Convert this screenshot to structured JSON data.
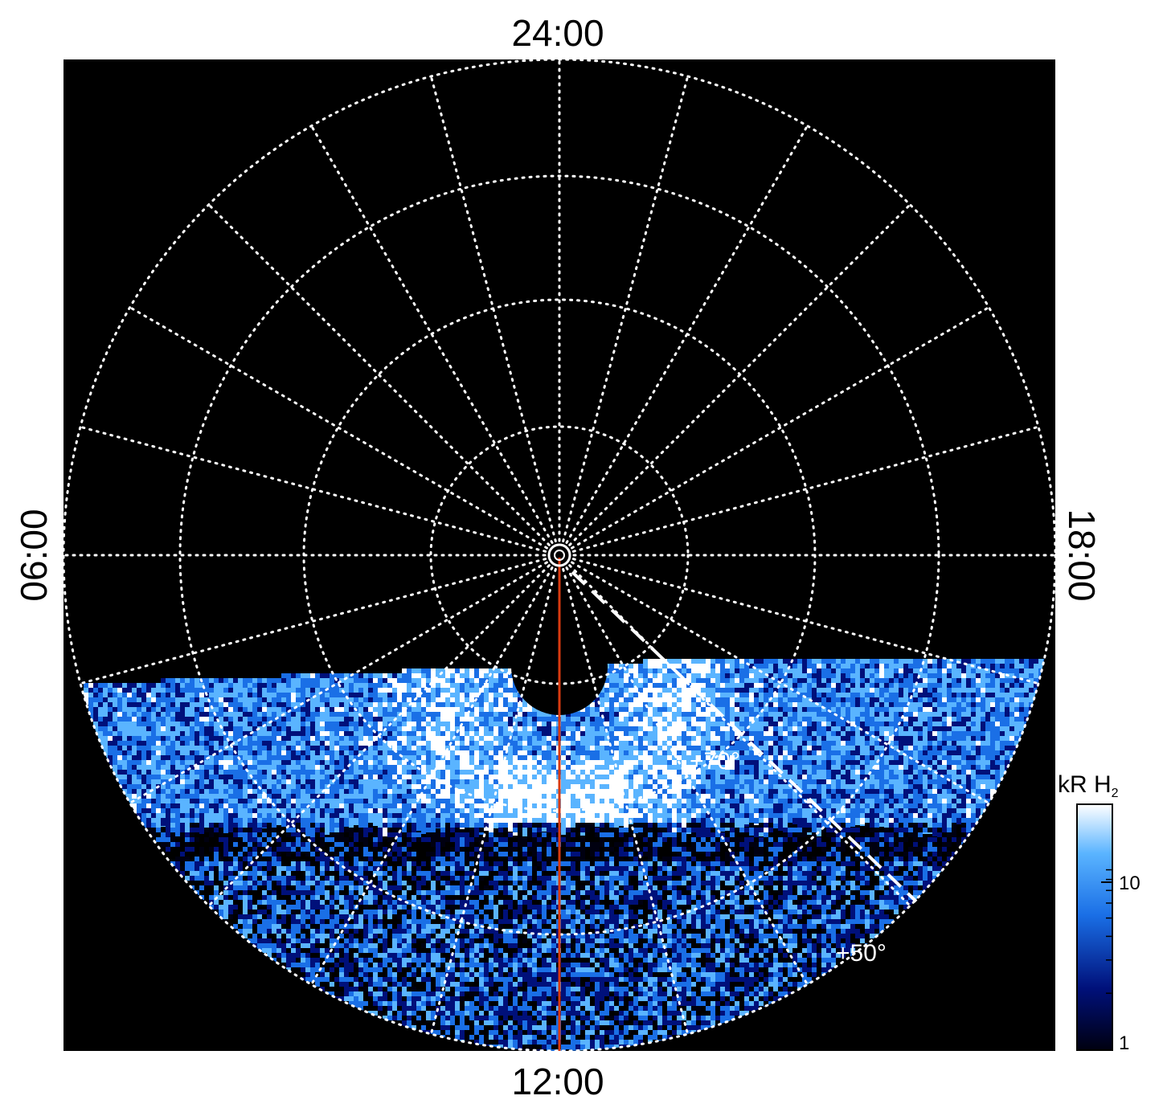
{
  "chart_data": {
    "type": "heatmap",
    "title": "",
    "projection": "polar",
    "local_time_labels": {
      "top": "24:00",
      "bottom": "12:00",
      "left": "06:00",
      "right": "18:00"
    },
    "latitude_labels": [
      "+70°",
      "+50°"
    ],
    "colorbar": {
      "title": "kR H",
      "title_subscript": "2",
      "scale": "log",
      "range": [
        1,
        20
      ],
      "ticks": [
        {
          "value": 1,
          "label": "1"
        },
        {
          "value": 10,
          "label": "10"
        }
      ],
      "colors": [
        "#000010",
        "#00107a",
        "#1a6fe6",
        "#5ab4ff",
        "#ffffff"
      ]
    },
    "grid": true,
    "background": "#000000",
    "grid_color": "#ffffff",
    "meridian_color": "#d83a10"
  }
}
